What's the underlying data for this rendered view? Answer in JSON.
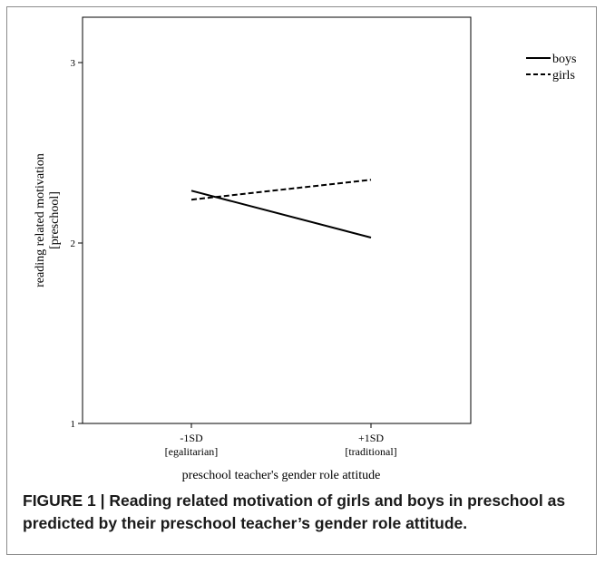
{
  "chart_data": {
    "type": "line",
    "title": "",
    "xlabel": "preschool teacher's gender role attitude",
    "ylabel": [
      "reading related motivation",
      "[preschool]"
    ],
    "categories": [
      {
        "line1": "-1SD",
        "line2": "[egalitarian]"
      },
      {
        "line1": "+1SD",
        "line2": "[traditional]"
      }
    ],
    "ylim": [
      1,
      3
    ],
    "yticks": [
      "1",
      "2",
      "3"
    ],
    "grid": false,
    "legend_position": "top-right, outside plot",
    "series": [
      {
        "name": "boys",
        "values": [
          2.29,
          2.03
        ],
        "style": "solid",
        "color": "#000000"
      },
      {
        "name": "girls",
        "values": [
          2.24,
          2.35
        ],
        "style": "dashed",
        "color": "#000000"
      }
    ]
  },
  "caption": {
    "label": "FIGURE 1 | ",
    "text": "Reading related motivation of girls and boys in preschool as predicted by their preschool teacher’s gender role attitude."
  }
}
